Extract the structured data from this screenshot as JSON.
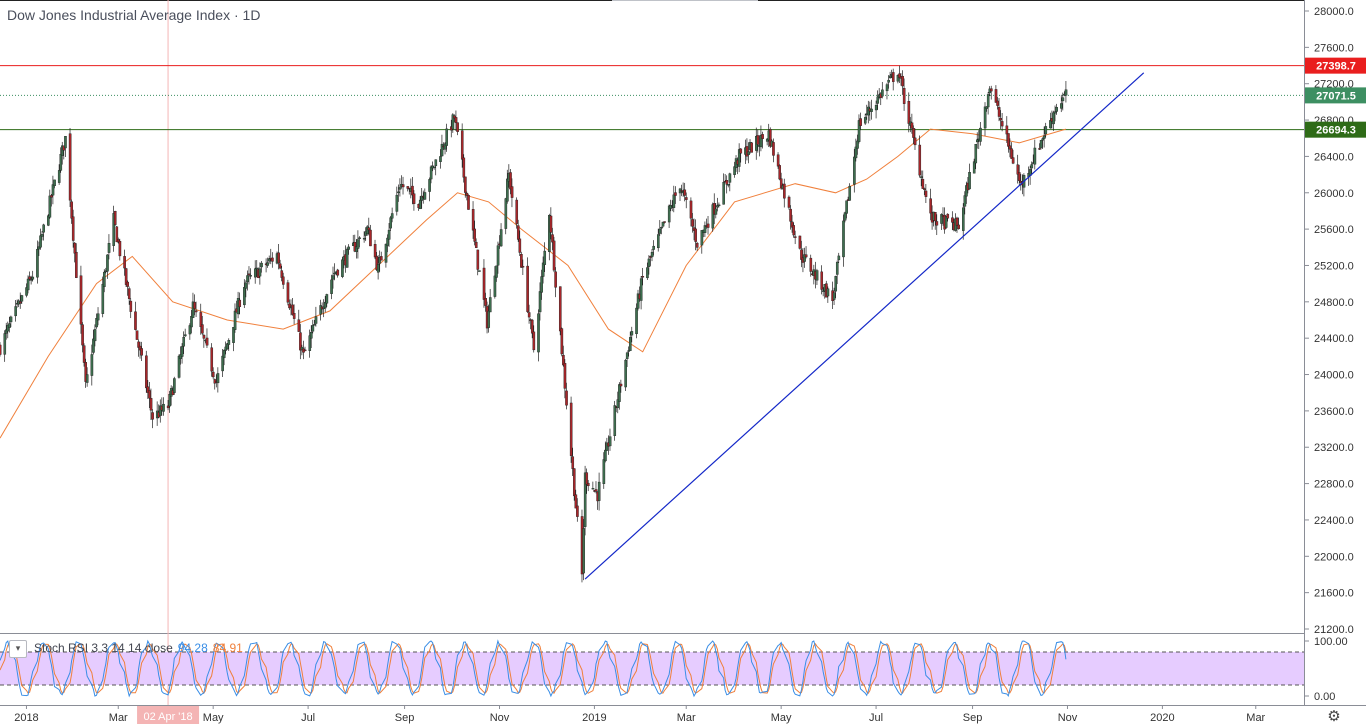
{
  "title": "Dow Jones Industrial Average Index · 1D",
  "chart_data": [
    {
      "type": "candlestick",
      "title": "Dow Jones Industrial Average Index · 1D",
      "ylim": [
        21200,
        28000
      ],
      "y_ticks": [
        21200,
        21600,
        22000,
        22400,
        22800,
        23200,
        23600,
        24000,
        24400,
        24800,
        25200,
        25600,
        26000,
        26400,
        26800,
        27200,
        27600,
        28000
      ],
      "y_tick_labels": [
        "21200.0",
        "21600.0",
        "22000.0",
        "22400.0",
        "22800.0",
        "23200.0",
        "23600.0",
        "24000.0",
        "24400.0",
        "24800.0",
        "25200.0",
        "25600.0",
        "26000.0",
        "26400.0",
        "26800.0",
        "27200.0",
        "27600.0",
        "28000.0"
      ],
      "x_tick_labels": [
        "2018",
        "Mar",
        "May",
        "Jul",
        "Sep",
        "Nov",
        "2019",
        "Mar",
        "May",
        "Jul",
        "Sep",
        "Nov",
        "2020",
        "Mar"
      ],
      "x_tick_dates": [
        "2018-01-01",
        "2018-03-01",
        "2018-05-01",
        "2018-07-01",
        "2018-09-01",
        "2018-11-01",
        "2019-01-01",
        "2019-03-01",
        "2019-05-01",
        "2019-07-01",
        "2019-09-01",
        "2019-11-01",
        "2020-01-01",
        "2020-03-01"
      ],
      "x_range": [
        "2017-12-15",
        "2020-04-01"
      ],
      "grid": false,
      "price_path": [
        [
          "2017-12-15",
          24300
        ],
        [
          "2018-01-05",
          25100
        ],
        [
          "2018-01-26",
          26600
        ],
        [
          "2018-02-08",
          23860
        ],
        [
          "2018-02-26",
          25700
        ],
        [
          "2018-03-23",
          23530
        ],
        [
          "2018-04-02",
          23650
        ],
        [
          "2018-04-18",
          24750
        ],
        [
          "2018-05-03",
          23920
        ],
        [
          "2018-05-21",
          25000
        ],
        [
          "2018-06-11",
          25320
        ],
        [
          "2018-06-28",
          24200
        ],
        [
          "2018-07-17",
          25100
        ],
        [
          "2018-08-08",
          25600
        ],
        [
          "2018-08-15",
          25160
        ],
        [
          "2018-08-29",
          26100
        ],
        [
          "2018-09-10",
          25900
        ],
        [
          "2018-10-03",
          26830
        ],
        [
          "2018-10-24",
          24580
        ],
        [
          "2018-11-07",
          26200
        ],
        [
          "2018-11-23",
          24280
        ],
        [
          "2018-12-03",
          25800
        ],
        [
          "2018-12-24",
          21790
        ],
        [
          "2018-12-26",
          22880
        ],
        [
          "2019-01-03",
          22680
        ],
        [
          "2019-02-01",
          25060
        ],
        [
          "2019-02-25",
          26100
        ],
        [
          "2019-03-08",
          25450
        ],
        [
          "2019-04-04",
          26400
        ],
        [
          "2019-04-23",
          26650
        ],
        [
          "2019-05-13",
          25340
        ],
        [
          "2019-06-03",
          24820
        ],
        [
          "2019-06-20",
          26750
        ],
        [
          "2019-07-15",
          27350
        ],
        [
          "2019-08-05",
          25720
        ],
        [
          "2019-08-23",
          25630
        ],
        [
          "2019-09-12",
          27180
        ],
        [
          "2019-10-02",
          26080
        ],
        [
          "2019-10-25",
          26960
        ],
        [
          "2019-10-31",
          27071
        ]
      ],
      "moving_average": [
        [
          "2017-12-15",
          23300
        ],
        [
          "2018-01-15",
          24200
        ],
        [
          "2018-02-15",
          25000
        ],
        [
          "2018-03-10",
          25300
        ],
        [
          "2018-04-05",
          24800
        ],
        [
          "2018-05-10",
          24600
        ],
        [
          "2018-06-15",
          24500
        ],
        [
          "2018-07-15",
          24700
        ],
        [
          "2018-08-15",
          25200
        ],
        [
          "2018-09-15",
          25700
        ],
        [
          "2018-10-05",
          26000
        ],
        [
          "2018-10-25",
          25900
        ],
        [
          "2018-11-15",
          25600
        ],
        [
          "2018-12-15",
          25200
        ],
        [
          "2019-01-10",
          24500
        ],
        [
          "2019-02-01",
          24250
        ],
        [
          "2019-03-01",
          25200
        ],
        [
          "2019-04-01",
          25900
        ],
        [
          "2019-05-10",
          26100
        ],
        [
          "2019-06-05",
          26000
        ],
        [
          "2019-06-25",
          26150
        ],
        [
          "2019-07-15",
          26400
        ],
        [
          "2019-08-05",
          26700
        ],
        [
          "2019-09-01",
          26650
        ],
        [
          "2019-10-01",
          26550
        ],
        [
          "2019-10-31",
          26700
        ]
      ],
      "horizontal_levels": [
        {
          "value": 27398.7,
          "label": "27398.7",
          "color": "#e91e1e",
          "style": "solid"
        },
        {
          "value": 27071.5,
          "label": "27071.5",
          "color": "#3d8f62",
          "style": "dotted"
        },
        {
          "value": 26694.3,
          "label": "26694.3",
          "color": "#2e6b17",
          "style": "solid"
        }
      ],
      "trendline": {
        "from": [
          "2018-12-26",
          21750
        ],
        "to": [
          "2019-12-20",
          27320
        ],
        "color": "#1428c8"
      },
      "crosshair": {
        "date_label": "02 Apr '18",
        "date": "2018-04-02"
      },
      "colors": {
        "up": "#3e6f4f",
        "down": "#a8262a",
        "ma": "#f0803c",
        "price_marker": "#6ea383"
      }
    },
    {
      "type": "line",
      "indicator": "Stoch RSI",
      "legend_label": "Stoch RSI 3 3 14 14 close",
      "ylim": [
        0,
        100
      ],
      "y_tick_labels": [
        "100.00",
        "0.00"
      ],
      "bands": [
        80,
        20
      ],
      "band_fill": "#e6ccff",
      "series": [
        {
          "name": "K",
          "value": 94.28,
          "value_label": "94.28",
          "color": "#3a8ee6"
        },
        {
          "name": "D",
          "value": 84.91,
          "value_label": "84.91",
          "color": "#f0803c"
        }
      ]
    }
  ],
  "ui": {
    "collapse_icon": "▾",
    "settings_icon": "⚙"
  }
}
